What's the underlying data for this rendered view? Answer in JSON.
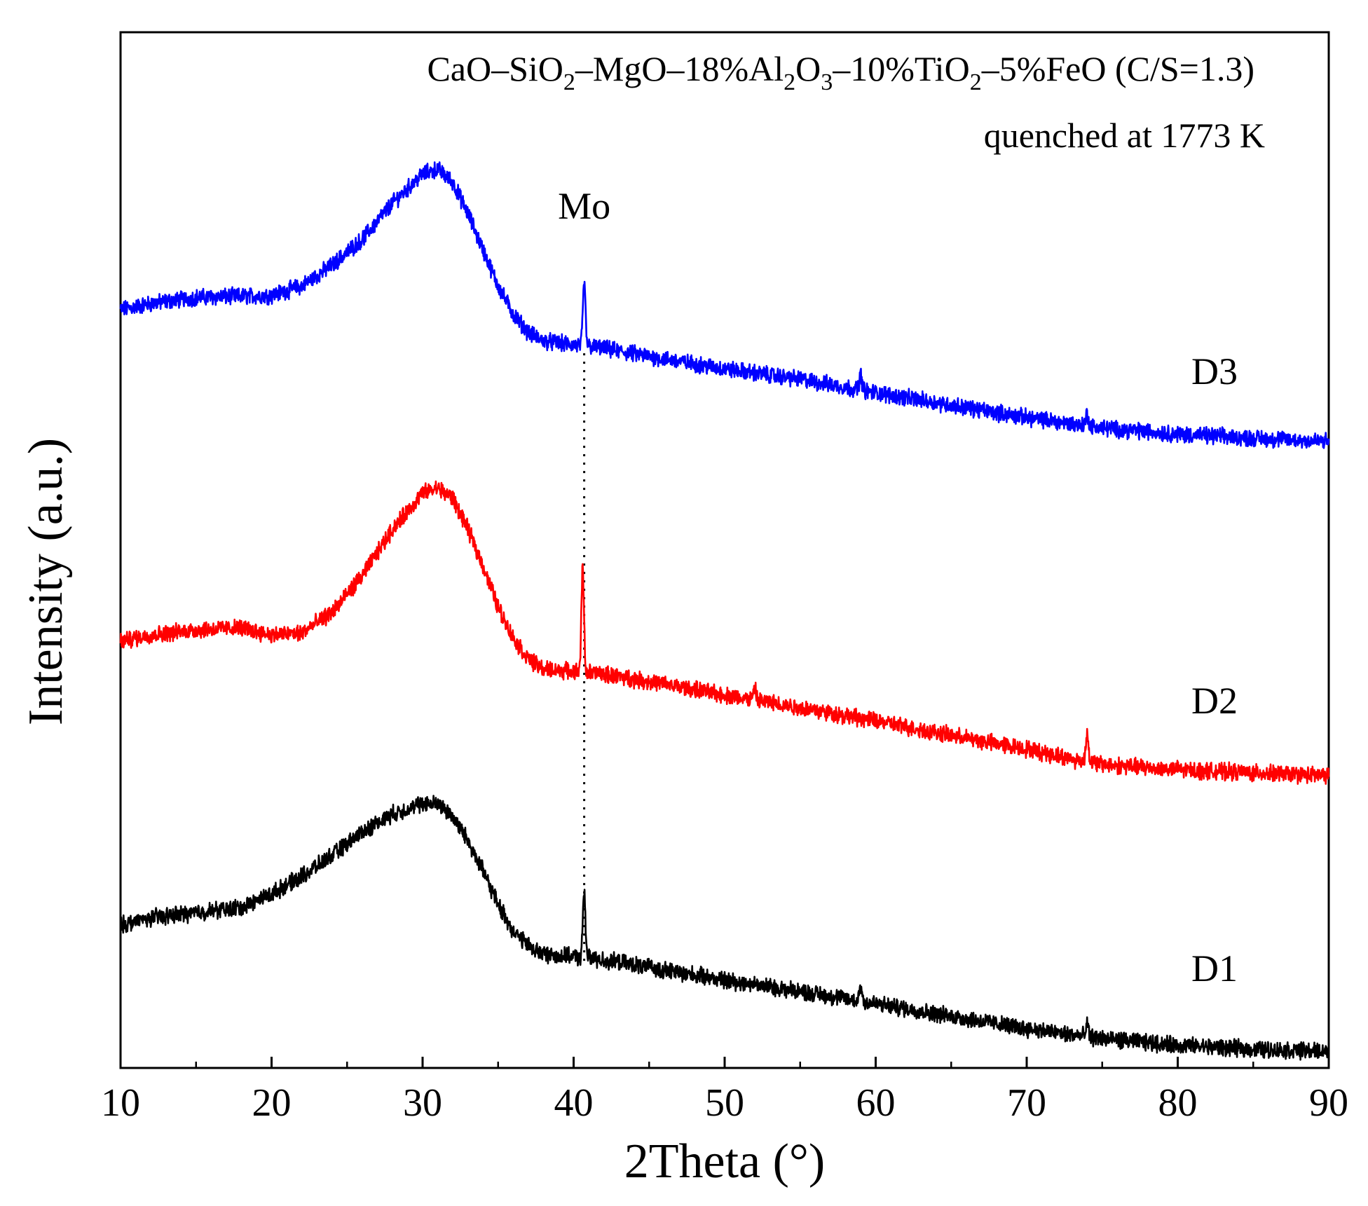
{
  "chart_data": {
    "type": "line",
    "title_parts": {
      "p1": "CaO–SiO",
      "s1": "2",
      "p2": "–MgO–18%Al",
      "s2": "2",
      "p3": "O",
      "s3": "3",
      "p4": "–10%TiO",
      "s4": "2",
      "p5": "–5%FeO (C/S=1.3)"
    },
    "subtitle": "quenched at 1773 K",
    "xlabel": "2Theta (°)",
    "ylabel": "Intensity (a.u.)",
    "xlim": [
      10,
      90
    ],
    "ylim": [
      0,
      100
    ],
    "xticks": [
      "10",
      "20",
      "30",
      "40",
      "50",
      "60",
      "70",
      "80",
      "90"
    ],
    "yticks_shown": false,
    "annotation": {
      "label": "Mo",
      "x": 40.7
    },
    "series": [
      {
        "name": "D3",
        "color": "#0000ff",
        "points": [
          [
            10,
            73.2
          ],
          [
            12,
            73.8
          ],
          [
            15,
            74.4
          ],
          [
            18,
            74.5
          ],
          [
            20,
            74.6
          ],
          [
            22,
            75.5
          ],
          [
            24,
            77.5
          ],
          [
            26,
            80
          ],
          [
            28,
            83.5
          ],
          [
            30,
            86.3
          ],
          [
            31,
            86.8
          ],
          [
            32,
            85.5
          ],
          [
            33,
            82.5
          ],
          [
            34,
            79
          ],
          [
            35,
            75.5
          ],
          [
            36,
            72.8
          ],
          [
            37,
            71
          ],
          [
            38,
            70.2
          ],
          [
            40,
            69.8
          ],
          [
            41,
            69.7
          ],
          [
            43,
            69.2
          ],
          [
            45,
            68.7
          ],
          [
            50,
            67.5
          ],
          [
            55,
            66.5
          ],
          [
            60,
            65.2
          ],
          [
            65,
            64
          ],
          [
            70,
            62.8
          ],
          [
            75,
            61.8
          ],
          [
            80,
            61.2
          ],
          [
            85,
            60.8
          ],
          [
            90,
            60.5
          ]
        ],
        "peaks": [
          [
            40.7,
            6
          ],
          [
            59,
            1.5
          ],
          [
            74,
            1.2
          ]
        ]
      },
      {
        "name": "D2",
        "color": "#ff0000",
        "points": [
          [
            10,
            41.2
          ],
          [
            12,
            41.8
          ],
          [
            15,
            42.3
          ],
          [
            18,
            42.5
          ],
          [
            20,
            41.8
          ],
          [
            22,
            42
          ],
          [
            24,
            44
          ],
          [
            26,
            47.5
          ],
          [
            28,
            52
          ],
          [
            30,
            55.5
          ],
          [
            31,
            56
          ],
          [
            32,
            55
          ],
          [
            33,
            52
          ],
          [
            34,
            48.5
          ],
          [
            35,
            44.5
          ],
          [
            36,
            41.5
          ],
          [
            37,
            39.5
          ],
          [
            38,
            38.5
          ],
          [
            40,
            38.3
          ],
          [
            41,
            38.2
          ],
          [
            43,
            37.8
          ],
          [
            45,
            37.3
          ],
          [
            50,
            36
          ],
          [
            55,
            34.8
          ],
          [
            60,
            33.5
          ],
          [
            65,
            32.1
          ],
          [
            70,
            30.8
          ],
          [
            74,
            29.5
          ],
          [
            76,
            29.2
          ],
          [
            80,
            28.8
          ],
          [
            85,
            28.5
          ],
          [
            90,
            28.2
          ]
        ],
        "peaks": [
          [
            40.6,
            10
          ],
          [
            52,
            1
          ],
          [
            74,
            3
          ]
        ]
      },
      {
        "name": "D1",
        "color": "#000000",
        "points": [
          [
            10,
            13.8
          ],
          [
            12,
            14.5
          ],
          [
            15,
            15
          ],
          [
            18,
            15.5
          ],
          [
            20,
            16.8
          ],
          [
            22,
            18.5
          ],
          [
            24,
            20.5
          ],
          [
            26,
            22.8
          ],
          [
            28,
            24.5
          ],
          [
            30,
            25.5
          ],
          [
            31,
            25.5
          ],
          [
            32,
            24.3
          ],
          [
            33,
            22
          ],
          [
            34,
            19
          ],
          [
            35,
            15.8
          ],
          [
            36,
            13.2
          ],
          [
            37,
            11.8
          ],
          [
            38,
            11
          ],
          [
            40,
            10.7
          ],
          [
            41,
            10.6
          ],
          [
            43,
            10.2
          ],
          [
            45,
            9.7
          ],
          [
            50,
            8.5
          ],
          [
            55,
            7.4
          ],
          [
            60,
            6.2
          ],
          [
            65,
            5
          ],
          [
            70,
            3.8
          ],
          [
            74,
            3
          ],
          [
            76,
            2.7
          ],
          [
            80,
            2.2
          ],
          [
            85,
            1.8
          ],
          [
            90,
            1.6
          ]
        ],
        "peaks": [
          [
            40.7,
            6.5
          ],
          [
            59,
            1.5
          ],
          [
            74,
            1.2
          ]
        ]
      }
    ]
  }
}
